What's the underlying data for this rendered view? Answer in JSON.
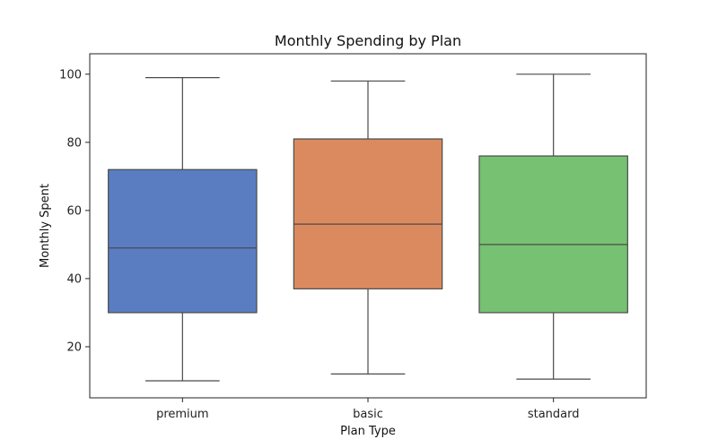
{
  "chart_data": {
    "type": "box",
    "title": "Monthly Spending by Plan",
    "xlabel": "Plan Type",
    "ylabel": "Monthly Spent",
    "categories": [
      "premium",
      "basic",
      "standard"
    ],
    "ylim": [
      5,
      106
    ],
    "yticks": [
      20,
      40,
      60,
      80,
      100
    ],
    "grid": false,
    "colors": [
      "#5a7dc2",
      "#db8a5f",
      "#77c172"
    ],
    "series": [
      {
        "category": "premium",
        "min": 10,
        "q1": 30,
        "median": 49,
        "q3": 72,
        "max": 99
      },
      {
        "category": "basic",
        "min": 12,
        "q1": 37,
        "median": 56,
        "q3": 81,
        "max": 98
      },
      {
        "category": "standard",
        "min": 10.5,
        "q1": 30,
        "median": 50,
        "q3": 76,
        "max": 100
      }
    ]
  }
}
